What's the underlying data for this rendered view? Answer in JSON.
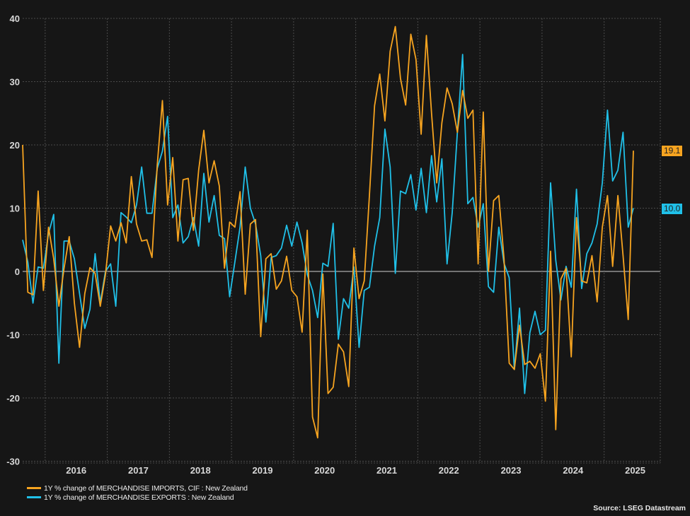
{
  "chart_data": {
    "type": "line",
    "title": "",
    "xlabel": "",
    "ylabel": "",
    "x_start": "2015-08",
    "x_end": "2025-06",
    "x_frequency": "monthly",
    "x_tick_labels": [
      "2016",
      "2017",
      "2018",
      "2019",
      "2020",
      "2021",
      "2022",
      "2023",
      "2024",
      "2025"
    ],
    "ylim": [
      -30,
      40
    ],
    "y_ticks": [
      40,
      30,
      20,
      10,
      0,
      -10,
      -20,
      -30
    ],
    "grid": true,
    "legend_placement": "bottom-left",
    "series": [
      {
        "name": "1Y % change of MERCHANDISE IMPORTS, CIF : New Zealand",
        "color": "#F7A420",
        "last_value_label": "19.1",
        "values": [
          20,
          -3.3,
          -3.7,
          12.7,
          -3,
          7,
          2,
          -5.5,
          0.5,
          5.5,
          -5,
          -12,
          -3.5,
          0.6,
          -0.3,
          -5.5,
          -0.5,
          7.2,
          4.8,
          7.7,
          4.5,
          15,
          7.5,
          4.8,
          5,
          2.2,
          16.8,
          27,
          10.5,
          18,
          4.8,
          14.5,
          14.7,
          6.5,
          16,
          22.3,
          14,
          17.5,
          13.5,
          0.5,
          7.8,
          7,
          12.6,
          -3.6,
          7.5,
          8.2,
          -10.3,
          2,
          2.8,
          -2.8,
          -1.5,
          2.4,
          -3,
          -4,
          -9.6,
          6.5,
          -23,
          -26.3,
          -0.4,
          -19.3,
          -18.3,
          -11.5,
          -12.7,
          -18.2,
          3.7,
          -4.3,
          -1.5,
          12,
          26.2,
          31.2,
          23.8,
          34.8,
          38.7,
          30.5,
          26.3,
          37.5,
          33.5,
          21.7,
          37.3,
          25,
          14,
          23.5,
          29,
          26.5,
          22,
          28.6,
          24.2,
          25.5,
          1.2,
          25.2,
          0,
          11.2,
          12,
          2,
          -14.5,
          -15.5,
          -8.5,
          -14.7,
          -14.2,
          -15.3,
          -13,
          -20.5,
          3.2,
          -25,
          -1.2,
          0.5,
          -13.5,
          8.5,
          -1.5,
          -1.8,
          2.5,
          -4.8,
          7,
          12,
          0.8,
          12,
          2.5,
          -7.6,
          19.1
        ]
      },
      {
        "name": "1Y % change of MERCHANDISE EXPORTS : New Zealand",
        "color": "#20C0E8",
        "last_value_label": "10.0",
        "values": [
          5,
          1.5,
          -5,
          0.7,
          0.5,
          6,
          9,
          -14.5,
          4.8,
          4.8,
          2,
          -3.5,
          -9,
          -6,
          2.8,
          -5,
          0,
          1.2,
          -5.5,
          9.3,
          8.6,
          7.7,
          10.5,
          16.5,
          9.2,
          9.2,
          16.3,
          19,
          24.5,
          8.5,
          10.5,
          4.5,
          5.5,
          8.5,
          4,
          15.5,
          7.8,
          12,
          5.7,
          5.2,
          -4,
          1.5,
          7,
          16.5,
          10,
          7.5,
          2.5,
          -8,
          2.2,
          2.5,
          3.7,
          7.3,
          4,
          7.8,
          4.5,
          -0.5,
          -3,
          -7.3,
          1.3,
          0.8,
          7.6,
          -10.7,
          -4.3,
          -5.8,
          0.7,
          -12,
          -3,
          -2.5,
          4,
          8.5,
          22.5,
          16.5,
          -0.3,
          12.7,
          12.3,
          15.3,
          9.7,
          16.3,
          9.3,
          18.3,
          11,
          17.8,
          1.2,
          9.3,
          22,
          34.3,
          10.7,
          11.7,
          7,
          10.7,
          -2.4,
          -3.3,
          7,
          1.3,
          -1,
          -15.5,
          -5.8,
          -19.3,
          -9.7,
          -6.3,
          -10,
          -9.3,
          14,
          1.8,
          -4.5,
          0.8,
          -2.5,
          13,
          -2.7,
          2.8,
          4.5,
          7.5,
          14,
          25.5,
          14.3,
          16,
          22,
          7,
          10
        ]
      }
    ]
  },
  "legend": {
    "items": [
      {
        "label": "1Y % change of MERCHANDISE IMPORTS, CIF : New Zealand",
        "color": "#F7A420"
      },
      {
        "label": "1Y % change of MERCHANDISE EXPORTS : New Zealand",
        "color": "#20C0E8"
      }
    ]
  },
  "source": "Source: LSEG Datastream",
  "colors": {
    "background": "#161616",
    "grid": "#4a4a4a",
    "zero_line": "#d0d0d0"
  }
}
